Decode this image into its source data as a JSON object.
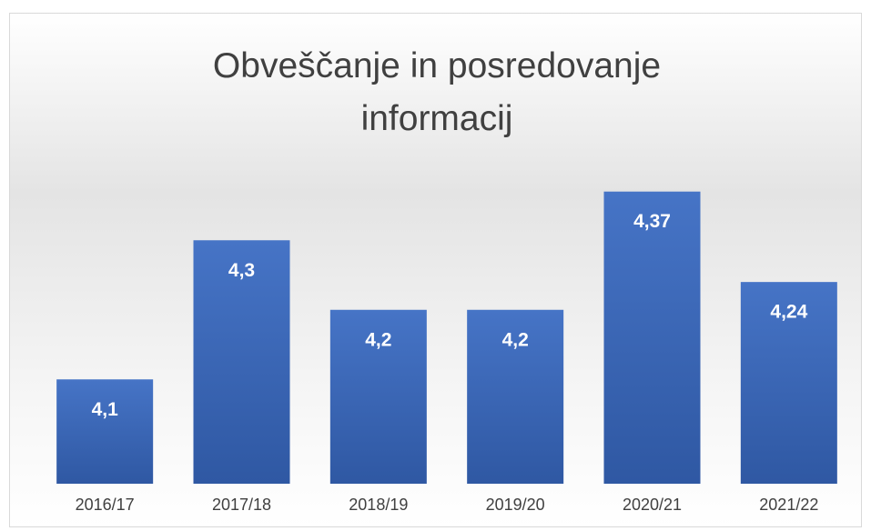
{
  "chart_data": {
    "type": "bar",
    "title": "Obveščanje in posredovanje informacij",
    "categories": [
      "2016/17",
      "2017/18",
      "2018/19",
      "2019/20",
      "2020/21",
      "2021/22"
    ],
    "values": [
      4.1,
      4.3,
      4.2,
      4.2,
      4.37,
      4.24
    ],
    "value_labels": [
      "4,1",
      "4,3",
      "4,2",
      "4,2",
      "4,37",
      "4,24"
    ],
    "color": "#4472c4",
    "ylim": [
      3.95,
      4.45
    ]
  }
}
